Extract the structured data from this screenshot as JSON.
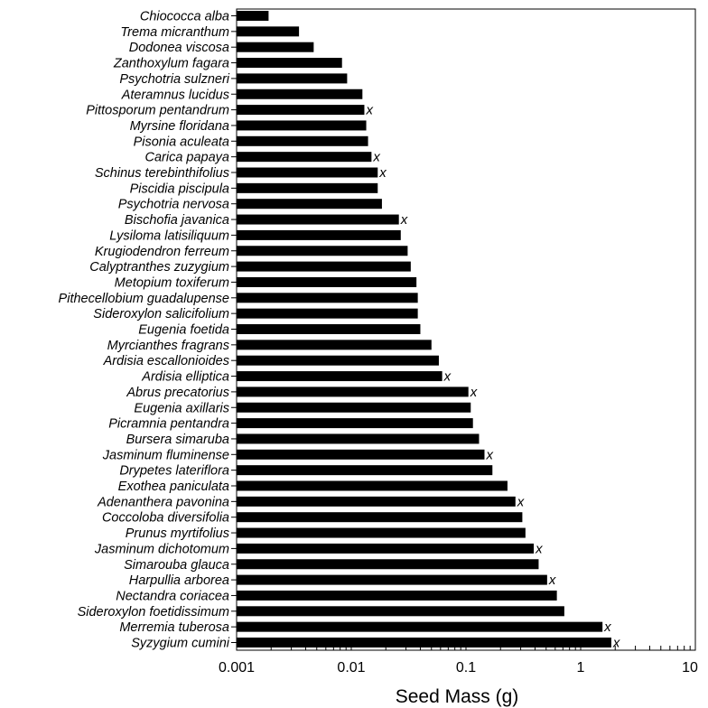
{
  "chart_data": {
    "type": "bar",
    "orientation": "horizontal",
    "xscale": "log",
    "xlim": [
      0.001,
      10
    ],
    "xlabel": "Seed Mass (g)",
    "xticks": [
      "0.001",
      "0.01",
      "0.1",
      "1",
      "10"
    ],
    "marker_text": "x",
    "categories": [
      "Chiococca alba",
      "Trema micranthum",
      "Dodonea viscosa",
      "Zanthoxylum fagara",
      "Psychotria sulzneri",
      "Ateramnus lucidus",
      "Pittosporum pentandrum",
      "Myrsine floridana",
      "Pisonia aculeata",
      "Carica papaya",
      "Schinus terebinthifolius",
      "Piscidia piscipula",
      "Psychotria nervosa",
      "Bischofia javanica",
      "Lysiloma latisiliquum",
      "Krugiodendron ferreum",
      "Calyptranthes zuzygium",
      "Metopium toxiferum",
      "Pithecellobium guadalupense",
      "Sideroxylon salicifolium",
      "Eugenia foetida",
      "Myrcianthes fragrans",
      "Ardisia escallonioides",
      "Ardisia elliptica",
      "Abrus precatorius",
      "Eugenia axillaris",
      "Picramnia pentandra",
      "Bursera simaruba",
      "Jasminum fluminense",
      "Drypetes lateriflora",
      "Exothea paniculata",
      "Adenanthera pavonina",
      "Coccoloba diversifolia",
      "Prunus myrtifolius",
      "Jasminum dichotomum",
      "Simarouba glauca",
      "Harpullia arborea",
      "Nectandra coriacea",
      "Sideroxylon foetidissimum",
      "Merremia tuberosa",
      "Syzygium cumini"
    ],
    "values": [
      0.0019,
      0.0035,
      0.0047,
      0.0083,
      0.0092,
      0.0125,
      0.013,
      0.0135,
      0.014,
      0.015,
      0.017,
      0.017,
      0.0185,
      0.026,
      0.027,
      0.031,
      0.033,
      0.037,
      0.038,
      0.038,
      0.04,
      0.05,
      0.058,
      0.062,
      0.105,
      0.11,
      0.115,
      0.13,
      0.145,
      0.17,
      0.23,
      0.27,
      0.31,
      0.33,
      0.39,
      0.43,
      0.51,
      0.62,
      0.72,
      1.55,
      1.85
    ],
    "marked": [
      false,
      false,
      false,
      false,
      false,
      false,
      true,
      false,
      false,
      true,
      true,
      false,
      false,
      true,
      false,
      false,
      false,
      false,
      false,
      false,
      false,
      false,
      false,
      true,
      true,
      false,
      false,
      false,
      true,
      false,
      false,
      true,
      false,
      false,
      true,
      false,
      true,
      false,
      false,
      true,
      true
    ],
    "grid": false,
    "legend": "none"
  }
}
